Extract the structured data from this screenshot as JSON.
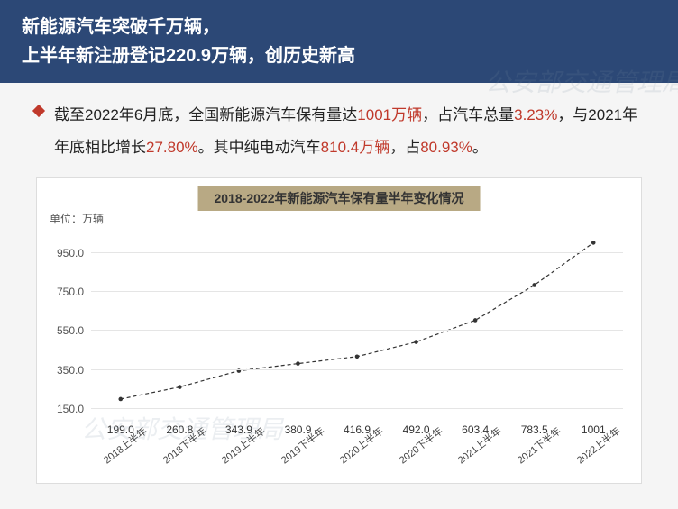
{
  "header": {
    "line1": "新能源汽车突破千万辆，",
    "line2": "上半年新注册登记220.9万辆，创历史新高"
  },
  "paragraph": {
    "t1": "截至2022年6月底，全国新能源汽车保有量达",
    "v1": "1001万辆",
    "t2": "，占汽车总量",
    "v2": "3.23%",
    "t3": "，与2021年年底相比增长",
    "v3": "27.80%",
    "t4": "。其中纯电动汽车",
    "v4": "810.4万辆",
    "t5": "，占",
    "v5": "80.93%",
    "t6": "。"
  },
  "chart": {
    "type": "bar",
    "title": "2018-2022年新能源汽车保有量半年变化情况",
    "unit_label": "单位：万辆",
    "categories": [
      "2018上半年",
      "2018下半年",
      "2019上半年",
      "2019下半年",
      "2020上半年",
      "2020下半年",
      "2021上半年",
      "2021下半年",
      "2022上半年"
    ],
    "values": [
      199.0,
      260.8,
      343.9,
      380.9,
      416.9,
      492.0,
      603.4,
      783.5,
      1001
    ],
    "value_labels": [
      "199.0",
      "260.8",
      "343.9",
      "380.9",
      "416.9",
      "492.0",
      "603.4",
      "783.5",
      "1001"
    ],
    "bar_color": "#3ba55c",
    "trend_color": "#333333",
    "yticks": [
      150.0,
      350.0,
      550.0,
      750.0,
      950.0
    ],
    "ytick_labels": [
      "150.0",
      "350.0",
      "550.0",
      "750.0",
      "950.0"
    ],
    "ylim": [
      0,
      1100
    ],
    "grid_color": "#e5e5e5",
    "background_color": "#ffffff",
    "title_bg": "#b8a984",
    "label_fontsize": 12
  },
  "watermark": "公安部交通管理局"
}
